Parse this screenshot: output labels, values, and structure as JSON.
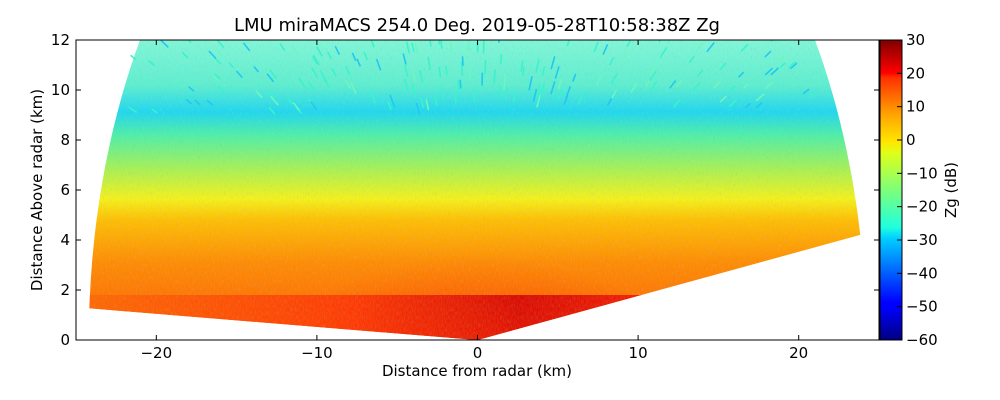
{
  "chart_data": {
    "type": "heatmap",
    "title": "LMU miraMACS 254.0 Deg. 2019-05-28T10:58:38Z  Zg",
    "xlabel": "Distance from radar (km)",
    "ylabel": "Distance Above radar  (km)",
    "xlim": [
      -25,
      25
    ],
    "ylim": [
      0,
      12
    ],
    "xticks": [
      -20,
      -10,
      0,
      10,
      20
    ],
    "xtick_labels": [
      "−20",
      "−10",
      "0",
      "10",
      "20"
    ],
    "yticks": [
      0,
      2,
      4,
      6,
      8,
      10,
      12
    ],
    "ytick_labels": [
      "0",
      "2",
      "4",
      "6",
      "8",
      "10",
      "12"
    ],
    "grid": false,
    "colorbar": {
      "label": "Zg (dB)",
      "range": [
        -60,
        30
      ],
      "colormap": "jet",
      "ticks": [
        30,
        20,
        10,
        0,
        -10,
        -20,
        -30,
        -40,
        -50,
        -60
      ],
      "tick_labels": [
        "30",
        "20",
        "10",
        "0",
        "−10",
        "−20",
        "−30",
        "−40",
        "−50",
        "−60"
      ]
    },
    "scan": {
      "azimuth_deg": 254.0,
      "max_range_km": 24.2,
      "min_elevation_left_deg": 3,
      "min_elevation_right_deg": 10,
      "layers": [
        {
          "top_km": 1.8,
          "zg_db": 22,
          "description": "boundary layer, strongest return near radar"
        },
        {
          "top_km": 4.5,
          "zg_db": 16,
          "description": "orange layer"
        },
        {
          "top_km": 6.5,
          "zg_db": -8,
          "description": "yellow-green layer"
        },
        {
          "top_km": 8.5,
          "zg_db": -22,
          "description": "green-cyan layer"
        },
        {
          "top_km": 12,
          "zg_db": -30,
          "description": "sparse cyan echoes aloft"
        }
      ]
    }
  }
}
